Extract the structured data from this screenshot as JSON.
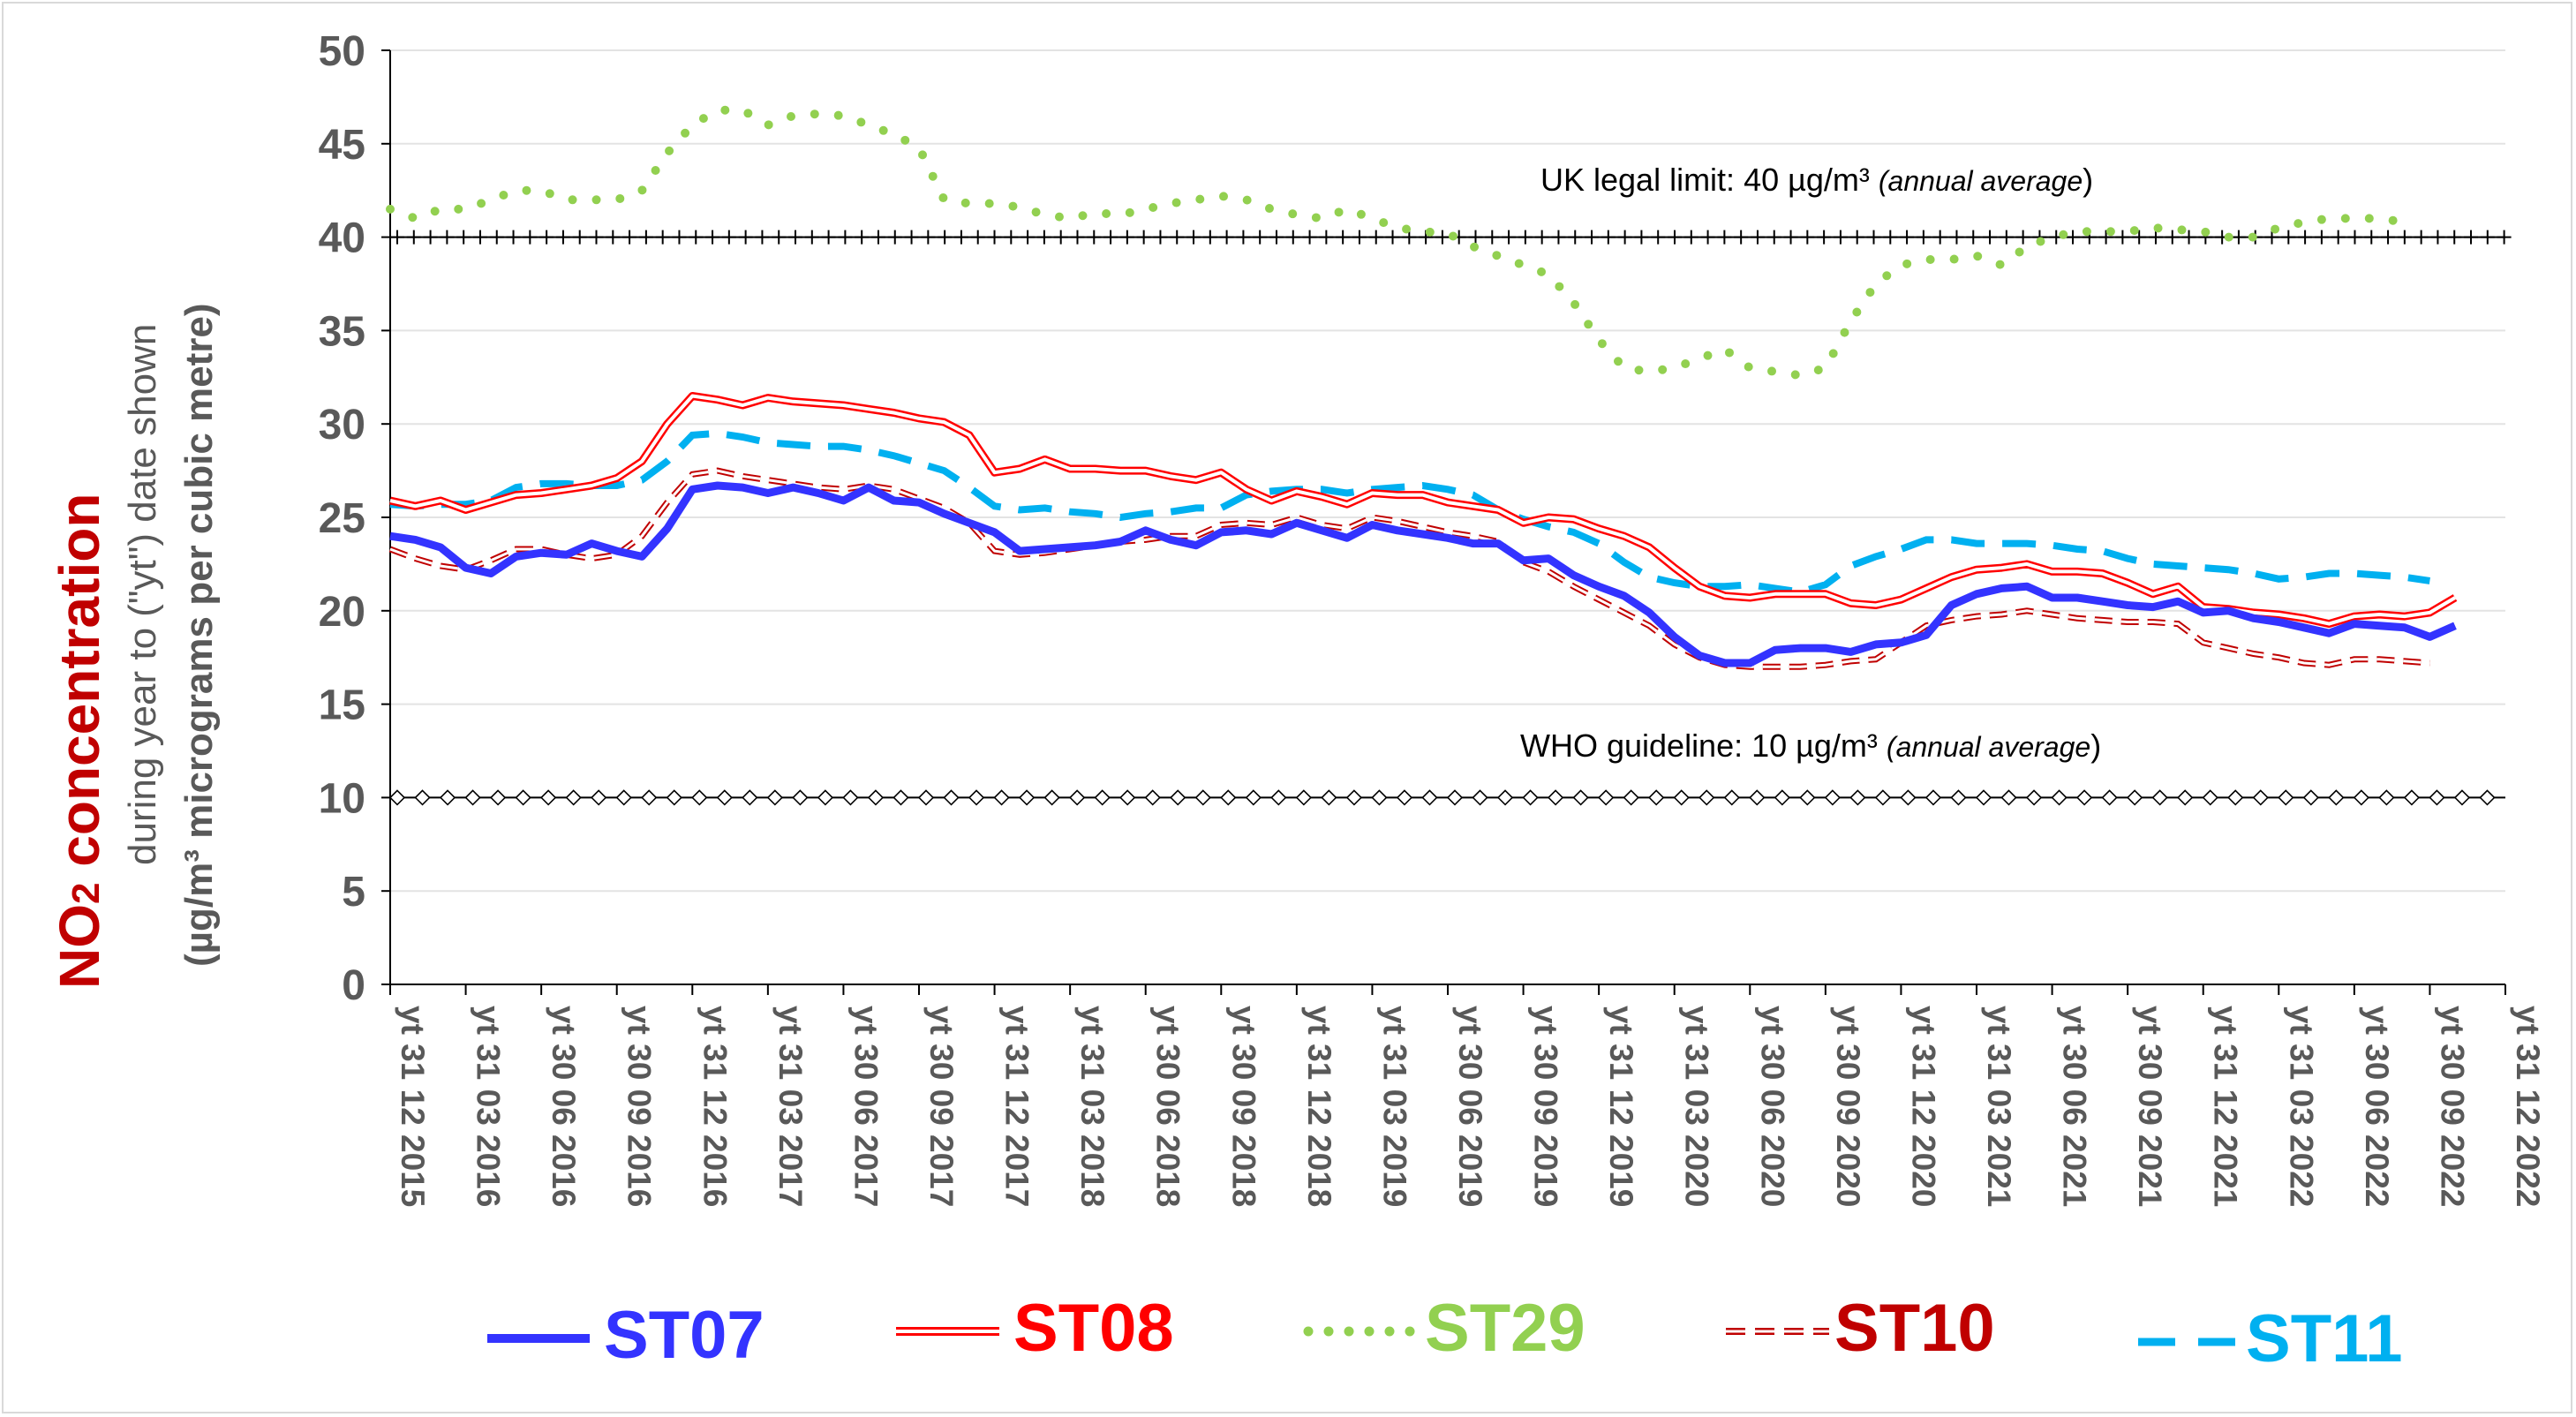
{
  "chart_data": {
    "type": "line",
    "ylabel": {
      "line1_main": "NO",
      "line1_sub": "2",
      "line1_rest": " concentration",
      "line2": "during year to (\"yt\") date shown",
      "line3": "(µg/m³ micrograms per cubic metre)"
    },
    "ylim": [
      0,
      50
    ],
    "yticks": [
      0,
      5,
      10,
      15,
      20,
      25,
      30,
      35,
      40,
      45,
      50
    ],
    "x_labels": [
      "yt 31 12 2015",
      "yt 31 03 2016",
      "yt 30 06 2016",
      "yt 30 09 2016",
      "yt 31 12 2016",
      "yt 31 03 2017",
      "yt 30 06 2017",
      "yt 30 09 2017",
      "yt 31 12 2017",
      "yt 31 03 2018",
      "yt 30 06 2018",
      "yt 30 09 2018",
      "yt 31 12 2018",
      "yt 31 03 2019",
      "yt 30 06 2019",
      "yt 30 09 2019",
      "yt 31 12 2019",
      "yt 31 03 2020",
      "yt 30 06 2020",
      "yt 30 09 2020",
      "yt 31 12 2020",
      "yt 31 03 2021",
      "yt 30 06 2021",
      "yt 30 09 2021",
      "yt 31 12 2021",
      "yt 31 03 2022",
      "yt 30 06 2022",
      "yt 30 09 2022",
      "yt 31 12 2022"
    ],
    "points_per_label": 3,
    "limits": [
      {
        "value": 40,
        "label": "UK legal limit:  40 µg/m³ ",
        "label_italic": "(annual average",
        "label_close": ")",
        "color": "#000000",
        "marker": "plus"
      },
      {
        "value": 10,
        "label": "WHO guideline:  10 µg/m³ ",
        "label_italic": "(annual average",
        "label_close": ")",
        "color": "#000000",
        "marker": "diamond"
      }
    ],
    "series": [
      {
        "name": "ST07",
        "color": "#3333ff",
        "style": "thick",
        "values": [
          24.0,
          23.8,
          23.4,
          22.3,
          22.0,
          22.9,
          23.1,
          23.0,
          23.6,
          23.2,
          22.9,
          24.4,
          26.5,
          26.7,
          26.6,
          26.3,
          26.6,
          26.3,
          25.9,
          26.6,
          25.9,
          25.8,
          25.2,
          24.7,
          24.2,
          23.2,
          23.3,
          23.4,
          23.5,
          23.7,
          24.3,
          23.8,
          23.5,
          24.2,
          24.3,
          24.1,
          24.7,
          24.3,
          23.9,
          24.6,
          24.3,
          24.1,
          23.9,
          23.6,
          23.6,
          22.7,
          22.8,
          21.9,
          21.3,
          20.8,
          19.9,
          18.6,
          17.6,
          17.2,
          17.2,
          17.9,
          18.0,
          18.0,
          17.8,
          18.2,
          18.3,
          18.7,
          20.3,
          20.9,
          21.2,
          21.3,
          20.7,
          20.7,
          20.5,
          20.3,
          20.2,
          20.5,
          19.9,
          20.0,
          19.6,
          19.4,
          19.1,
          18.8,
          19.3,
          19.2,
          19.1,
          18.6,
          19.2
        ]
      },
      {
        "name": "ST08",
        "color": "#ff0000",
        "style": "double",
        "values": [
          25.9,
          25.6,
          25.9,
          25.4,
          25.8,
          26.2,
          26.3,
          26.5,
          26.7,
          27.1,
          28.0,
          30.0,
          31.5,
          31.3,
          31.0,
          31.4,
          31.2,
          31.1,
          31.0,
          30.8,
          30.6,
          30.3,
          30.1,
          29.4,
          27.4,
          27.6,
          28.1,
          27.6,
          27.6,
          27.5,
          27.5,
          27.2,
          27.0,
          27.4,
          26.5,
          25.9,
          26.4,
          26.1,
          25.7,
          26.3,
          26.2,
          26.2,
          25.8,
          25.6,
          25.4,
          24.7,
          25.0,
          24.9,
          24.4,
          24.0,
          23.4,
          22.3,
          21.3,
          20.8,
          20.7,
          20.9,
          20.9,
          20.9,
          20.4,
          20.3,
          20.6,
          21.2,
          21.8,
          22.2,
          22.3,
          22.5,
          22.1,
          22.1,
          22.0,
          21.5,
          20.9,
          21.3,
          20.2,
          20.1,
          19.9,
          19.8,
          19.6,
          19.3,
          19.7,
          19.8,
          19.7,
          19.9,
          20.7
        ]
      },
      {
        "name": "ST29",
        "color": "#92d050",
        "style": "dotted",
        "values": [
          41.5,
          41.0,
          41.5,
          41.5,
          42.0,
          42.5,
          42.5,
          42.0,
          42.0,
          42.0,
          42.5,
          44.5,
          46.0,
          46.8,
          46.8,
          46.0,
          46.5,
          46.6,
          46.5,
          46.0,
          45.5,
          44.8,
          42.0,
          41.8,
          41.8,
          41.6,
          41.2,
          41.0,
          41.3,
          41.2,
          41.5,
          41.8,
          42.0,
          42.2,
          42.0,
          41.5,
          41.2,
          41.0,
          41.5,
          41.0,
          40.5,
          40.3,
          40.2,
          39.5,
          39.0,
          38.5,
          38.0,
          36.5,
          34.5,
          33.0,
          32.8,
          33.0,
          33.5,
          34.0,
          33.0,
          32.8,
          32.6,
          33.0,
          35.5,
          37.5,
          38.5,
          38.8,
          38.8,
          39.0,
          38.5,
          39.5,
          40.0,
          40.3,
          40.3,
          40.3,
          40.5,
          40.4,
          40.3,
          40.0,
          40.0,
          40.5,
          40.8,
          41.0,
          41.0,
          41.0,
          40.8
        ]
      },
      {
        "name": "ST10",
        "color": "#c00000",
        "style": "dashed-double",
        "values": [
          23.3,
          22.8,
          22.4,
          22.2,
          22.7,
          23.3,
          23.3,
          23.0,
          22.8,
          23.0,
          24.0,
          25.8,
          27.3,
          27.5,
          27.2,
          27.0,
          26.8,
          26.6,
          26.5,
          26.7,
          26.5,
          26.0,
          25.5,
          24.7,
          23.2,
          23.0,
          23.1,
          23.3,
          23.5,
          23.7,
          23.8,
          24.0,
          24.0,
          24.6,
          24.7,
          24.6,
          25.0,
          24.6,
          24.4,
          25.0,
          24.8,
          24.5,
          24.2,
          24.0,
          23.7,
          22.6,
          22.1,
          21.3,
          20.6,
          19.9,
          19.2,
          18.2,
          17.5,
          17.1,
          17.0,
          17.0,
          17.0,
          17.1,
          17.3,
          17.4,
          18.3,
          19.2,
          19.5,
          19.7,
          19.8,
          20.0,
          19.8,
          19.6,
          19.5,
          19.4,
          19.4,
          19.3,
          18.3,
          18.0,
          17.7,
          17.5,
          17.2,
          17.1,
          17.4,
          17.4,
          17.3,
          17.2
        ]
      },
      {
        "name": "ST11",
        "color": "#00b0f0",
        "style": "dashed",
        "values": [
          25.7,
          25.6,
          25.7,
          25.7,
          25.9,
          26.6,
          26.8,
          26.8,
          26.7,
          26.7,
          27.0,
          28.0,
          29.4,
          29.5,
          29.3,
          29.0,
          28.9,
          28.8,
          28.8,
          28.6,
          28.3,
          27.9,
          27.5,
          26.6,
          25.6,
          25.4,
          25.5,
          25.3,
          25.2,
          25.0,
          25.2,
          25.3,
          25.5,
          25.5,
          26.2,
          26.4,
          26.5,
          26.5,
          26.3,
          26.5,
          26.6,
          26.7,
          26.5,
          26.2,
          25.4,
          24.9,
          24.5,
          24.2,
          23.6,
          22.6,
          21.8,
          21.5,
          21.3,
          21.3,
          21.4,
          21.2,
          21.0,
          21.4,
          22.4,
          22.9,
          23.3,
          23.8,
          23.8,
          23.6,
          23.6,
          23.6,
          23.5,
          23.3,
          23.2,
          22.8,
          22.5,
          22.4,
          22.3,
          22.2,
          22.0,
          21.7,
          21.8,
          22.0,
          22.0,
          21.9,
          21.8,
          21.6
        ]
      }
    ]
  }
}
